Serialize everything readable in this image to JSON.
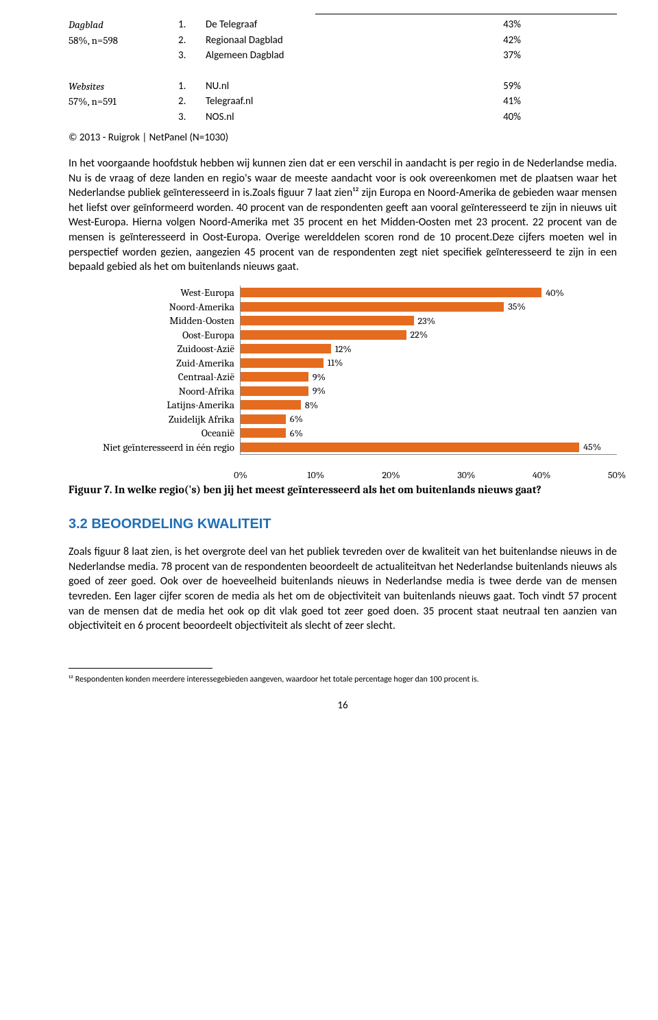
{
  "top_tables": {
    "group1": {
      "left_label": "Dagblad",
      "left_sub": "58%, n=598",
      "rows": [
        {
          "n": "1.",
          "name": "De Telegraaf",
          "pct": "43%"
        },
        {
          "n": "2.",
          "name": "Regionaal Dagblad",
          "pct": "42%"
        },
        {
          "n": "3.",
          "name": "Algemeen Dagblad",
          "pct": "37%"
        }
      ]
    },
    "group2": {
      "left_label": "Websites",
      "left_sub": "57%, n=591",
      "rows": [
        {
          "n": "1.",
          "name": "NU.nl",
          "pct": "59%"
        },
        {
          "n": "2.",
          "name": "Telegraaf.nl",
          "pct": "41%"
        },
        {
          "n": "3.",
          "name": "NOS.nl",
          "pct": "40%"
        }
      ]
    }
  },
  "copyright": "© 2013 - Ruigrok | NetPanel (N=1030)",
  "para1": "In het voorgaande hoofdstuk hebben wij kunnen zien dat er een verschil in aandacht is per regio in de Nederlandse media. Nu is de vraag of deze landen en regio's waar de meeste aandacht voor is ook overeenkomen met de plaatsen waar het Nederlandse publiek geïnteresseerd in is.Zoals figuur 7 laat zien¹² zijn Europa en Noord-Amerika de gebieden waar mensen het liefst over geïnformeerd worden. 40 procent van de respondenten geeft aan vooral geïnteresseerd te zijn in nieuws uit West-Europa. Hierna volgen Noord-Amerika met 35 procent en het Midden-Oosten met 23 procent. 22 procent van de mensen is geïnteresseerd in Oost-Europa. Overige werelddelen scoren rond de 10 procent.Deze cijfers moeten wel in perspectief worden gezien, aangezien 45 procent van de respondenten zegt niet specifiek geïnteresseerd te zijn in een bepaald gebied als het om buitenlands nieuws gaat.",
  "chart": {
    "bar_color": "#e56b1f",
    "max": 50,
    "items": [
      {
        "label": "West-Europa",
        "value": 40,
        "text": "40%"
      },
      {
        "label": "Noord-Amerika",
        "value": 35,
        "text": "35%"
      },
      {
        "label": "Midden-Oosten",
        "value": 23,
        "text": "23%"
      },
      {
        "label": "Oost-Europa",
        "value": 22,
        "text": "22%"
      },
      {
        "label": "Zuidoost-Azië",
        "value": 12,
        "text": "12%"
      },
      {
        "label": "Zuid-Amerika",
        "value": 11,
        "text": "11%"
      },
      {
        "label": "Centraal-Azië",
        "value": 9,
        "text": "9%"
      },
      {
        "label": "Noord-Afrika",
        "value": 9,
        "text": "9%"
      },
      {
        "label": "Latijns-Amerika",
        "value": 8,
        "text": "8%"
      },
      {
        "label": "Zuidelijk Afrika",
        "value": 6,
        "text": "6%"
      },
      {
        "label": "Oceanië",
        "value": 6,
        "text": "6%"
      },
      {
        "label": "Niet geïnteresseerd in één regio",
        "value": 45,
        "text": "45%"
      }
    ],
    "xticks": [
      {
        "pos": 0,
        "label": "0%"
      },
      {
        "pos": 10,
        "label": "10%"
      },
      {
        "pos": 20,
        "label": "20%"
      },
      {
        "pos": 30,
        "label": "30%"
      },
      {
        "pos": 40,
        "label": "40%"
      },
      {
        "pos": 50,
        "label": "50%"
      }
    ]
  },
  "figure_caption": "Figuur 7. In welke regio('s) ben jij het meest geïnteresseerd als het om buitenlands nieuws gaat?",
  "section_heading": "3.2 BEOORDELING KWALITEIT",
  "para2": "Zoals figuur 8 laat zien, is het overgrote deel van het publiek tevreden over de kwaliteit van het buitenlandse nieuws in de Nederlandse media. 78 procent van de respondenten beoordeelt de actualiteitvan het Nederlandse buitenlands nieuws als goed of zeer goed. Ook over de hoeveelheid buitenlands nieuws in Nederlandse media is twee derde van de mensen tevreden. Een lager cijfer scoren de media als het om de objectiviteit van buitenlands nieuws gaat. Toch vindt 57 procent van de mensen dat de media het ook op dit vlak goed tot zeer goed doen. 35 procent staat neutraal ten aanzien van objectiviteit en 6 procent beoordeelt objectiviteit als slecht of zeer slecht.",
  "footnote": "¹² Respondenten konden meerdere interessegebieden aangeven, waardoor het totale percentage hoger dan 100 procent is.",
  "page_num": "16"
}
